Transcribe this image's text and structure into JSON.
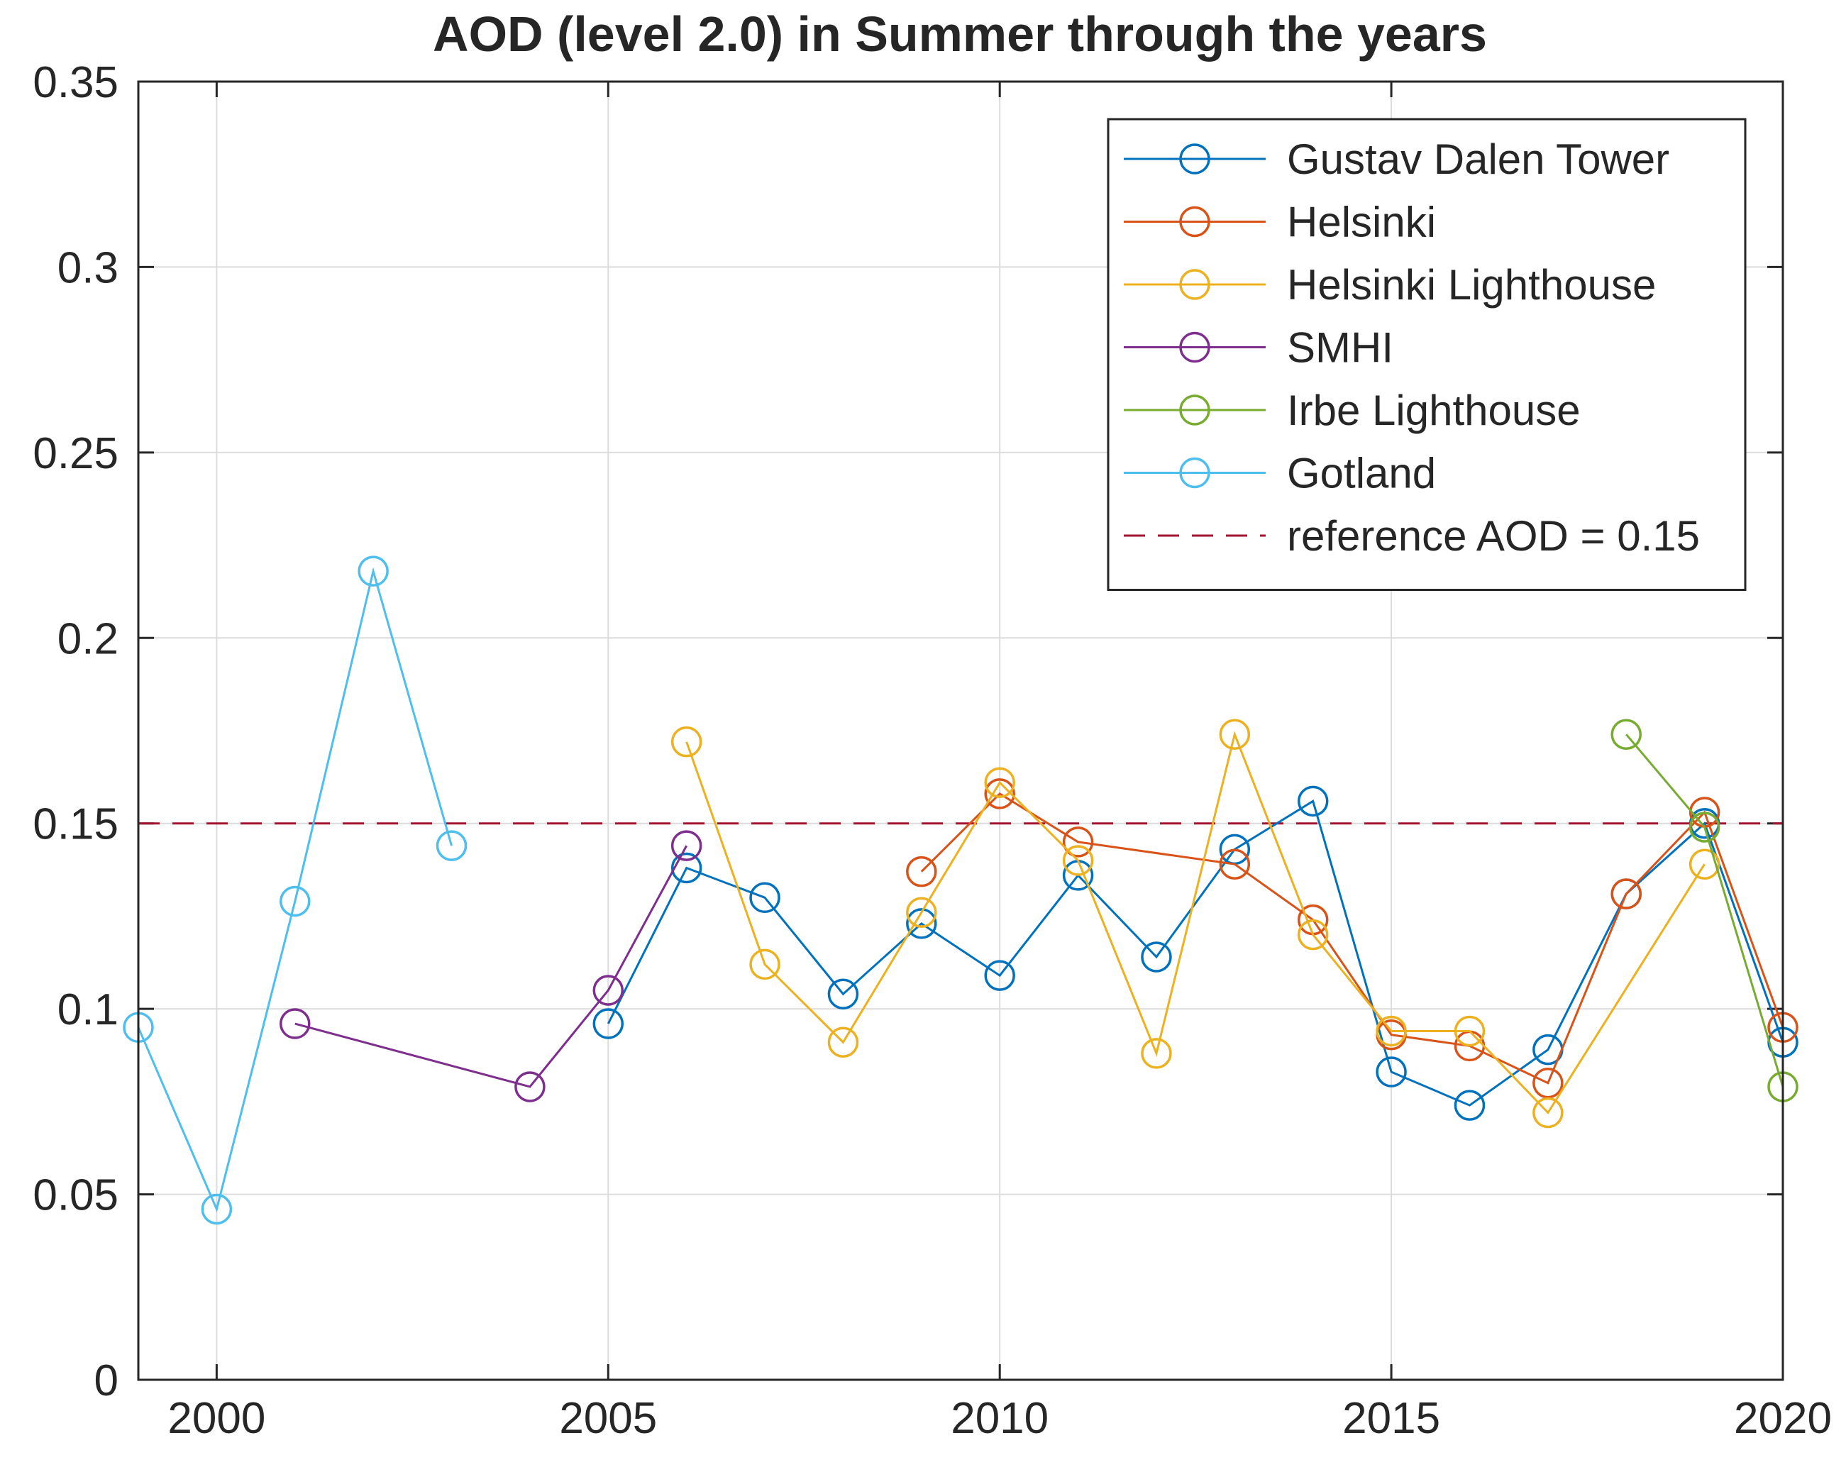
{
  "chart_data": {
    "type": "line",
    "title": "AOD (level 2.0) in Summer through the years",
    "xlabel": "",
    "ylabel": "",
    "xlim": [
      1999,
      2020
    ],
    "ylim": [
      0,
      0.35
    ],
    "xticks": [
      2000,
      2005,
      2010,
      2015,
      2020
    ],
    "xtick_labels": [
      "2000",
      "2005",
      "2010",
      "2015",
      "2020"
    ],
    "yticks": [
      0,
      0.05,
      0.1,
      0.15,
      0.2,
      0.25,
      0.3,
      0.35
    ],
    "ytick_labels": [
      "0",
      "0.05",
      "0.1",
      "0.15",
      "0.2",
      "0.25",
      "0.3",
      "0.35"
    ],
    "grid": true,
    "legend_position": "top-right",
    "series": [
      {
        "name": "Gustav Dalen Tower",
        "color": "#0072BD",
        "x": [
          2005,
          2006,
          2007,
          2008,
          2009,
          2010,
          2011,
          2012,
          2013,
          2014,
          2015,
          2016,
          2017,
          2018,
          2019,
          2020
        ],
        "y": [
          0.096,
          0.138,
          0.13,
          0.104,
          0.123,
          0.109,
          0.136,
          0.114,
          0.143,
          0.156,
          0.083,
          0.074,
          0.089,
          0.131,
          0.15,
          0.091
        ]
      },
      {
        "name": "Helsinki",
        "color": "#D95319",
        "x": [
          2009,
          2010,
          2011,
          2013,
          2014,
          2015,
          2016,
          2017,
          2018,
          2019,
          2020
        ],
        "y": [
          0.137,
          0.158,
          0.145,
          0.139,
          0.124,
          0.093,
          0.09,
          0.08,
          0.131,
          0.153,
          0.095
        ]
      },
      {
        "name": "Helsinki Lighthouse",
        "color": "#EDB120",
        "x": [
          2006,
          2007,
          2008,
          2009,
          2010,
          2011,
          2012,
          2013,
          2014,
          2015,
          2016,
          2017,
          2019
        ],
        "y": [
          0.172,
          0.112,
          0.091,
          0.126,
          0.161,
          0.14,
          0.088,
          0.174,
          0.12,
          0.094,
          0.094,
          0.072,
          0.139
        ]
      },
      {
        "name": "SMHI",
        "color": "#7E2F8E",
        "x": [
          2001,
          2004,
          2005,
          2006
        ],
        "y": [
          0.096,
          0.079,
          0.105,
          0.144
        ]
      },
      {
        "name": "Irbe Lighthouse",
        "color": "#77AC30",
        "x": [
          2018,
          2019,
          2020
        ],
        "y": [
          0.174,
          0.149,
          0.079
        ]
      },
      {
        "name": "Gotland",
        "color": "#4DBEEE",
        "x": [
          1999,
          2000,
          2001,
          2002,
          2003
        ],
        "y": [
          0.095,
          0.046,
          0.129,
          0.218,
          0.144
        ]
      }
    ],
    "reference_line": {
      "name": "reference AOD = 0.15",
      "y": 0.15,
      "color": "#A2142F",
      "style": "dashed"
    }
  }
}
